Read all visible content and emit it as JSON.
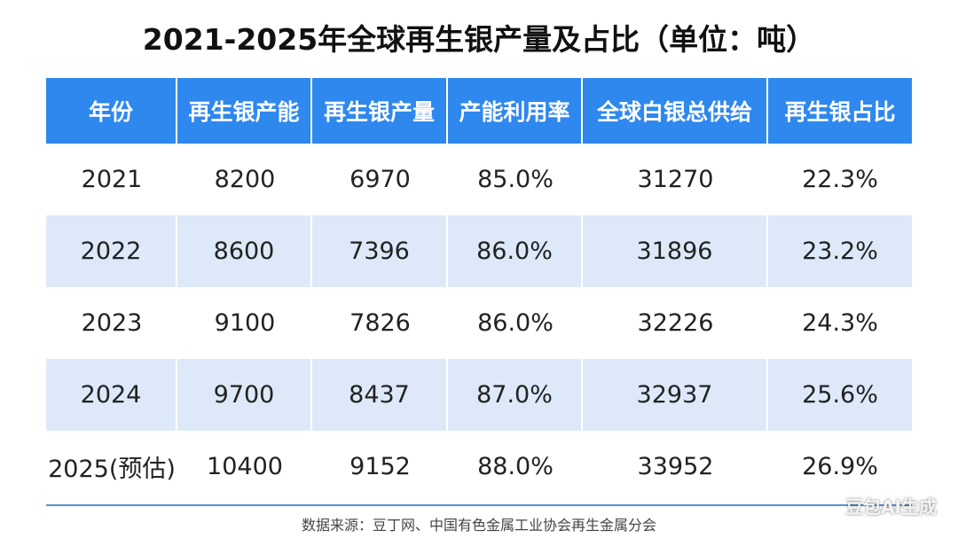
{
  "title": "2021-2025年全球再生银产量及占比（单位：吨）",
  "table": {
    "header": [
      "年份",
      "再生银产能",
      "再生银产量",
      "产能利用率",
      "全球白银总供给",
      "再生银占比"
    ],
    "rows": [
      [
        "2021",
        "8200",
        "6970",
        "85.0%",
        "31270",
        "22.3%"
      ],
      [
        "2022",
        "8600",
        "7396",
        "86.0%",
        "31896",
        "23.2%"
      ],
      [
        "2023",
        "9100",
        "7826",
        "86.0%",
        "32226",
        "24.3%"
      ],
      [
        "2024",
        "9700",
        "8437",
        "87.0%",
        "32937",
        "25.6%"
      ],
      [
        "2025(预估)",
        "10400",
        "9152",
        "88.0%",
        "33952",
        "26.9%"
      ]
    ]
  },
  "source": "数据来源：豆丁网、中国有色金属工业协会再生金属分会",
  "watermark": "豆包AI生成"
}
